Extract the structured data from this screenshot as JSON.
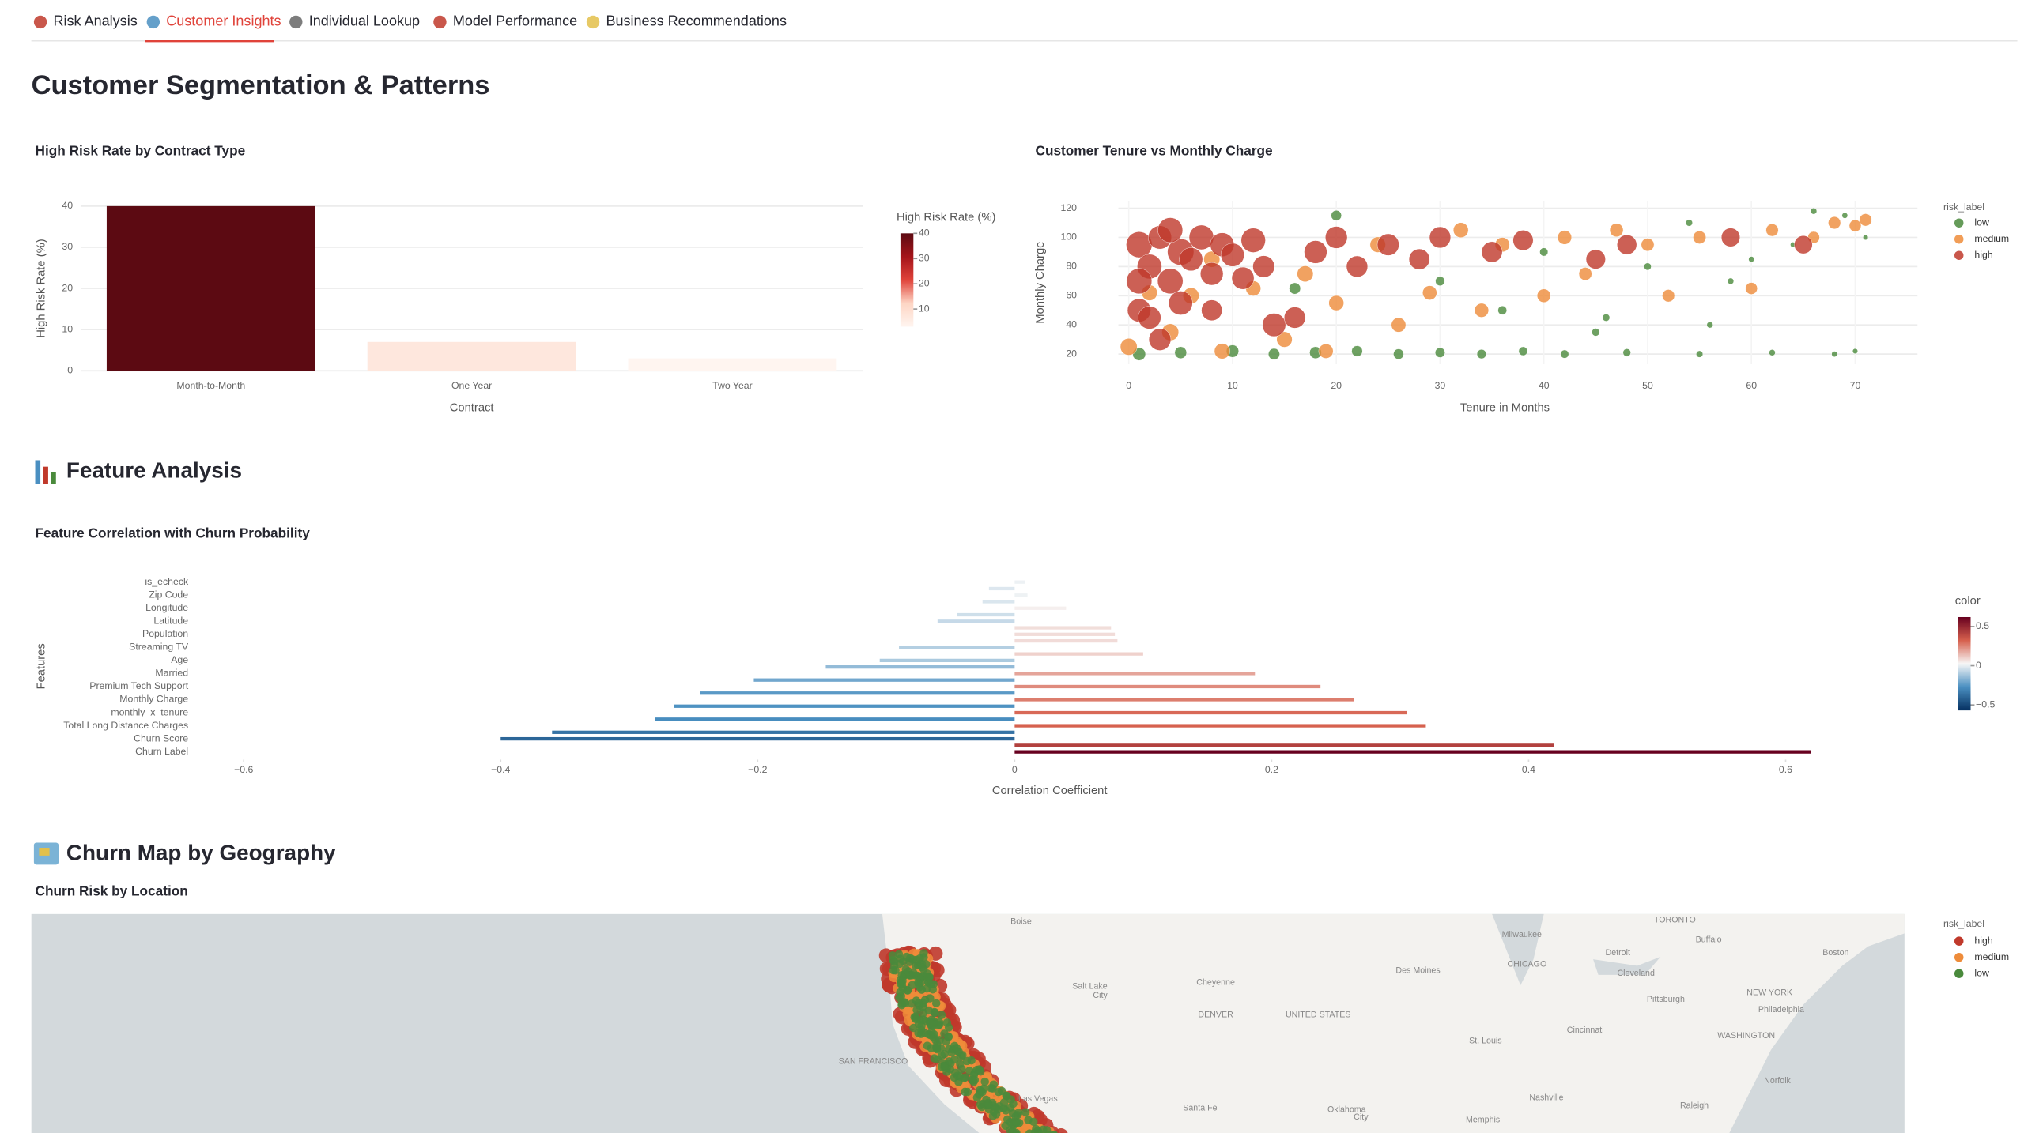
{
  "tabs": [
    {
      "label": "Risk Analysis"
    },
    {
      "label": "Customer Insights",
      "active": true
    },
    {
      "label": "Individual Lookup"
    },
    {
      "label": "Model Performance"
    },
    {
      "label": "Business Recommendations"
    }
  ],
  "page_title": "Customer Segmentation & Patterns",
  "sections": [
    "Feature Analysis",
    "Churn Map by Geography"
  ],
  "chart_data": [
    {
      "type": "bar",
      "title": "High Risk Rate by Contract Type",
      "x_label": "Contract",
      "y_label": "High Risk Rate (%)",
      "categories": [
        "Month-to-Month",
        "One Year",
        "Two Year"
      ],
      "values": [
        40,
        7,
        3
      ],
      "ylim": [
        0,
        40
      ],
      "yticks": [
        0,
        10,
        20,
        30,
        40
      ],
      "grid": true,
      "colorbar_title": "High Risk Rate (%)",
      "colorscale": [
        "#fff5f0",
        "#fdd5c4",
        "#e0433a",
        "#a5141a",
        "#5c0a12"
      ],
      "clim": [
        3,
        40
      ],
      "cticks": [
        10,
        20,
        30,
        40
      ]
    },
    {
      "type": "scatter",
      "title": "Customer Tenure vs Monthly Charge",
      "x_label": "Tenure in Months",
      "y_label": "Monthly Charge",
      "xlim": [
        -1,
        76
      ],
      "xticks": [
        0,
        10,
        20,
        30,
        40,
        50,
        60,
        70
      ],
      "ylim": [
        13,
        125
      ],
      "yticks": [
        20,
        40,
        60,
        80,
        100,
        120
      ],
      "grid": true,
      "legend_title": "risk_label",
      "legend": "right",
      "series": [
        {
          "name": "low",
          "color": "#4a8a3c",
          "x": [
            1,
            5,
            10,
            14,
            18,
            22,
            26,
            30,
            34,
            38,
            42,
            48,
            55,
            62,
            68,
            70,
            16,
            20,
            30,
            36,
            40,
            45,
            50,
            54,
            58,
            60,
            64,
            66,
            69,
            71,
            46,
            56
          ],
          "values": [
            20,
            21,
            22,
            20,
            21,
            22,
            20,
            21,
            20,
            22,
            20,
            21,
            20,
            21,
            20,
            22,
            65,
            115,
            70,
            50,
            90,
            35,
            80,
            110,
            70,
            85,
            95,
            118,
            115,
            100,
            45,
            40
          ],
          "sizes": [
            40,
            36,
            38,
            34,
            36,
            32,
            30,
            28,
            26,
            24,
            22,
            20,
            16,
            14,
            12,
            10,
            34,
            30,
            26,
            24,
            22,
            20,
            18,
            16,
            14,
            12,
            10,
            14,
            12,
            10,
            18,
            14
          ]
        },
        {
          "name": "medium",
          "color": "#ee8c3a",
          "x": [
            0,
            2,
            4,
            6,
            9,
            12,
            15,
            17,
            20,
            24,
            26,
            29,
            32,
            34,
            36,
            40,
            42,
            44,
            47,
            50,
            52,
            55,
            60,
            62,
            66,
            68,
            70,
            71,
            8,
            19
          ],
          "values": [
            25,
            62,
            35,
            60,
            22,
            65,
            30,
            75,
            55,
            95,
            40,
            62,
            105,
            50,
            95,
            60,
            100,
            75,
            105,
            95,
            60,
            100,
            65,
            105,
            100,
            110,
            108,
            112,
            85,
            22
          ],
          "sizes": [
            55,
            50,
            55,
            52,
            50,
            48,
            50,
            52,
            48,
            50,
            46,
            45,
            48,
            44,
            46,
            42,
            44,
            40,
            42,
            40,
            38,
            40,
            36,
            38,
            36,
            38,
            36,
            38,
            52,
            46
          ]
        },
        {
          "name": "high",
          "color": "#c0392b",
          "x": [
            1,
            2,
            3,
            4,
            5,
            6,
            7,
            8,
            9,
            10,
            11,
            12,
            1,
            2,
            3,
            5,
            8,
            14,
            18,
            20,
            22,
            25,
            28,
            30,
            35,
            38,
            45,
            48,
            58,
            65,
            1,
            4,
            13,
            16
          ],
          "values": [
            95,
            80,
            100,
            70,
            90,
            85,
            100,
            75,
            95,
            88,
            72,
            98,
            50,
            45,
            30,
            55,
            50,
            40,
            90,
            100,
            80,
            95,
            85,
            100,
            90,
            98,
            85,
            95,
            100,
            95,
            70,
            105,
            80,
            45
          ],
          "sizes": [
            90,
            85,
            80,
            88,
            92,
            80,
            85,
            78,
            82,
            80,
            76,
            84,
            80,
            78,
            75,
            82,
            70,
            80,
            78,
            75,
            72,
            74,
            70,
            72,
            70,
            68,
            65,
            66,
            62,
            60,
            88,
            86,
            74,
            72
          ]
        }
      ]
    },
    {
      "type": "hbar",
      "title": "Feature Correlation with Churn Probability",
      "x_label": "Correlation Coefficient",
      "y_label": "Features",
      "categories": [
        "is_echeck",
        null,
        "Zip Code",
        null,
        "Longitude",
        null,
        "Latitude",
        null,
        "Population",
        null,
        "Streaming TV",
        null,
        "Age",
        null,
        "Married",
        null,
        "Premium Tech Support",
        null,
        "Monthly Charge",
        null,
        "monthly_x_tenure",
        null,
        "Total Long Distance Charges",
        null,
        "Churn Score",
        null,
        "Churn Label"
      ],
      "values": [
        0.008,
        -0.02,
        0.01,
        -0.025,
        0.04,
        -0.045,
        -0.06,
        0.075,
        0.078,
        0.08,
        -0.09,
        0.1,
        -0.105,
        -0.147,
        0.187,
        -0.203,
        0.238,
        -0.245,
        0.264,
        -0.265,
        0.305,
        -0.28,
        0.32,
        -0.36,
        -0.4,
        0.42,
        0.62
      ],
      "xlim": [
        -0.63,
        0.64
      ],
      "xticks": [
        {
          "value": -0.6,
          "label": "−0.6"
        },
        {
          "value": -0.4,
          "label": "−0.4"
        },
        {
          "value": -0.2,
          "label": "−0.2"
        },
        0,
        0.2,
        0.4,
        0.6
      ],
      "colorbar_title": "color",
      "colorscale": [
        "#053061",
        "#4a8fc1",
        "#f7f7f7",
        "#d6604d",
        "#67001f"
      ],
      "clim": [
        -0.57,
        0.62
      ],
      "cticks": [
        0.5,
        0,
        {
          "value": -0.5,
          "label": "−0.5"
        }
      ]
    },
    {
      "type": "map",
      "title": "Churn Risk by Location",
      "legend_title": "risk_label",
      "series": [
        {
          "name": "high",
          "color": "#c0392b"
        },
        {
          "name": "medium",
          "color": "#ee8c3a"
        },
        {
          "name": "low",
          "color": "#4a8a3c"
        }
      ],
      "labels": [
        "Boise",
        "Milwaukee",
        "TORONTO",
        "Buffalo",
        "Detroit",
        "Boston",
        "Des Moines",
        "CHICAGO",
        "Cleveland",
        "Salt Lake",
        "City",
        "Cheyenne",
        "NEW YORK",
        "Pittsburgh",
        "Philadelphia",
        "DENVER",
        "UNITED STATES",
        "WASHINGTON",
        "Cincinnati",
        "St. Louis",
        "SAN FRANCISCO",
        "Norfolk",
        "Nashville",
        "Santa Fe",
        "Oklahoma",
        "City",
        "Raleigh",
        "Memphis",
        "Las Vegas"
      ]
    }
  ]
}
